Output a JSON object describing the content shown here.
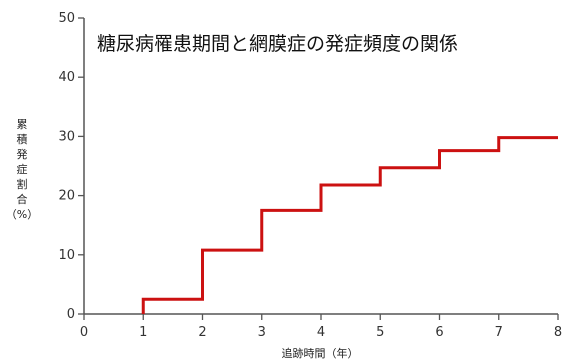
{
  "chart_data": {
    "type": "line",
    "step": "post",
    "title": "糖尿病罹患期間と網膜症の発症頻度の関係",
    "xlabel": "追跡時間（年）",
    "ylabel": "累積発症割合（%）",
    "ylabel_chars": [
      "累",
      "積",
      "発",
      "症",
      "割",
      "合",
      "（%）"
    ],
    "xlim": [
      0,
      8
    ],
    "ylim": [
      0,
      50
    ],
    "x_ticks": [
      "0",
      "1",
      "2",
      "3",
      "4",
      "5",
      "6",
      "7",
      "8"
    ],
    "y_ticks": [
      "0",
      "10",
      "20",
      "30",
      "40",
      "50"
    ],
    "grid": false,
    "series": [
      {
        "x": [
          1,
          2,
          3,
          4,
          5,
          6,
          7,
          8
        ],
        "y": [
          2.5,
          10.8,
          17.5,
          21.8,
          24.7,
          27.6,
          29.8,
          29.8
        ],
        "color": "#cc1111"
      }
    ]
  }
}
